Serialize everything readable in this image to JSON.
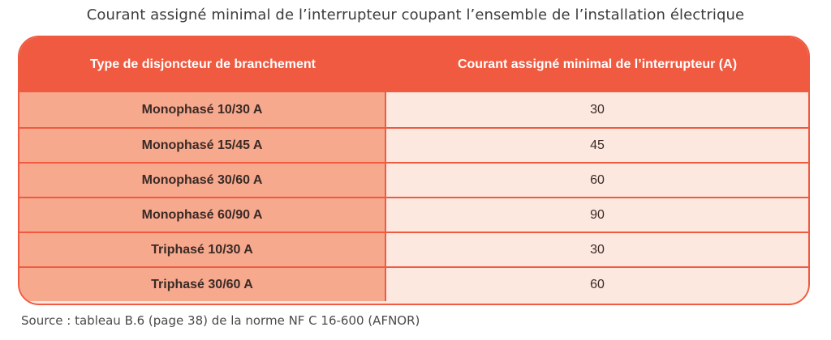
{
  "title": "Courant assigné minimal de l’interrupteur coupant l’ensemble de l’installation électrique",
  "table": {
    "headers": [
      "Type de disjoncteur de branchement",
      "Courant assigné minimal de l’interrupteur (A)"
    ],
    "rows": [
      {
        "type": "Monophasé 10/30 A",
        "current": "30"
      },
      {
        "type": "Monophasé 15/45 A",
        "current": "45"
      },
      {
        "type": "Monophasé 30/60 A",
        "current": "60"
      },
      {
        "type": "Monophasé 60/90 A",
        "current": "90"
      },
      {
        "type": "Triphasé 10/30 A",
        "current": "30"
      },
      {
        "type": "Triphasé 30/60 A",
        "current": "60"
      }
    ]
  },
  "source": "Source : tableau B.6 (page 38) de la norme NF C 16-600 (AFNOR)",
  "colors": {
    "accent": "#ef5a40",
    "left_column": "#f7a98e",
    "right_column": "#fde8df"
  }
}
